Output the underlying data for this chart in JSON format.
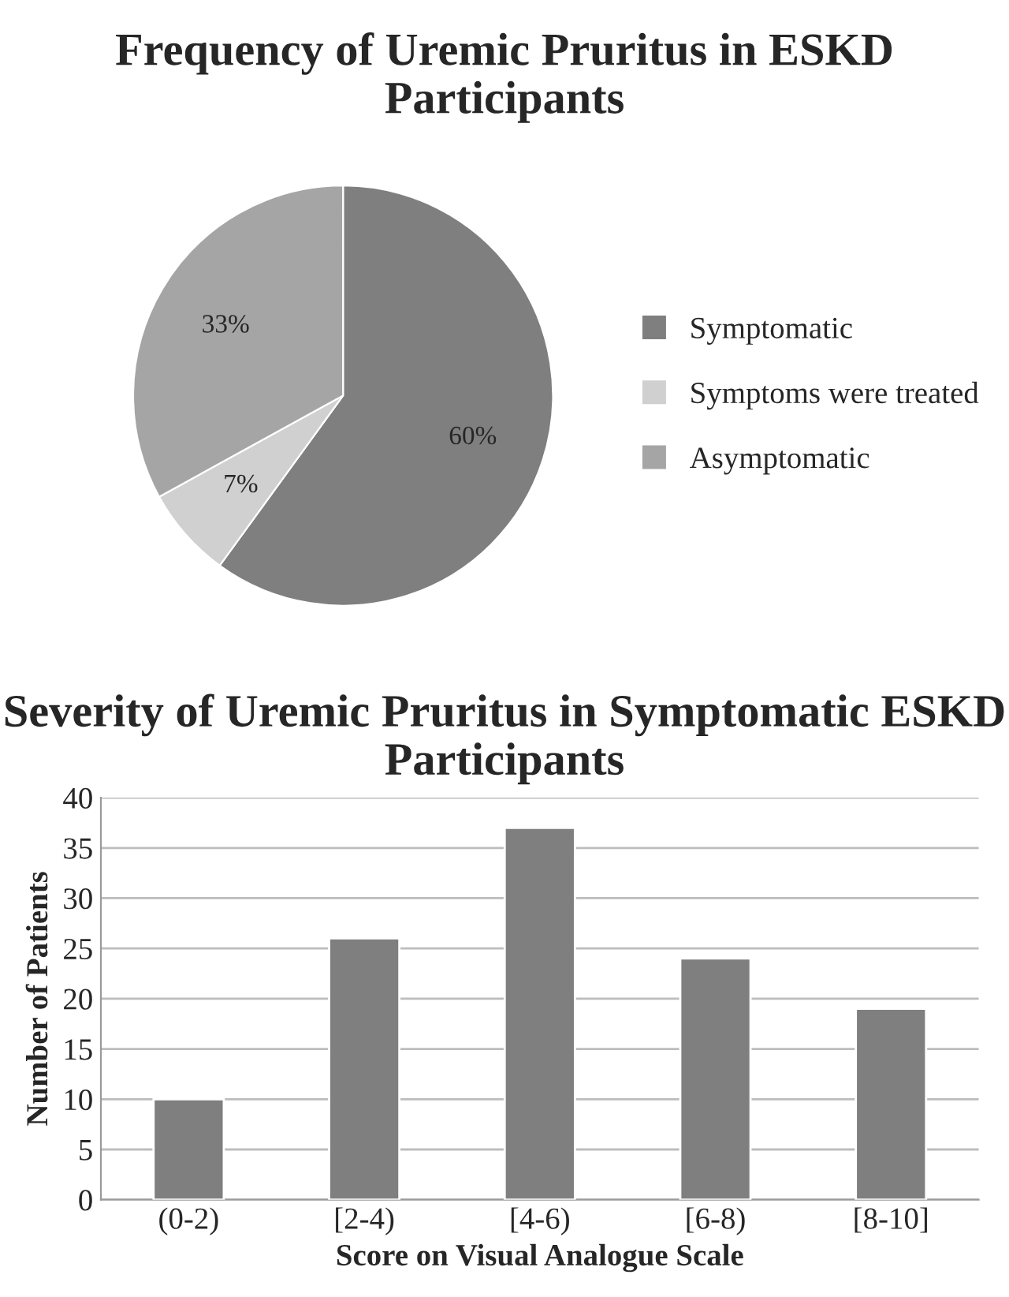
{
  "chart_data": [
    {
      "type": "pie",
      "title": "Frequency of Uremic Pruritus in ESKD Participants",
      "categories": [
        "Symptomatic",
        "Symptoms were treated",
        "Asymptomatic"
      ],
      "values": [
        60,
        7,
        33
      ],
      "colors": [
        "#7f7f7f",
        "#d0d0d0",
        "#a5a5a5"
      ],
      "value_labels": [
        "60%",
        "7%",
        "33%"
      ],
      "legend": "right"
    },
    {
      "type": "bar",
      "title": "Severity of Uremic Pruritus in Symptomatic ESKD Participants",
      "xlabel": "Score on Visual Analogue Scale",
      "ylabel": "Number of Patients",
      "categories": [
        "(0-2)",
        "[2-4)",
        "[4-6)",
        "[6-8)",
        "[8-10]"
      ],
      "values": [
        10,
        26,
        37,
        24,
        19
      ],
      "color": "#7f7f7f",
      "ylim": [
        0,
        40
      ],
      "yticks": [
        0,
        5,
        10,
        15,
        20,
        25,
        30,
        35,
        40
      ],
      "grid": "y"
    }
  ]
}
